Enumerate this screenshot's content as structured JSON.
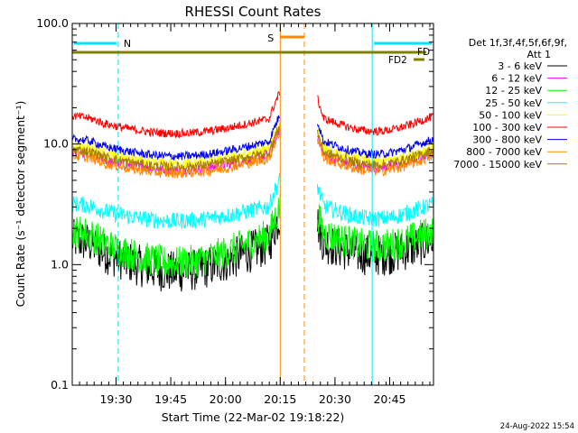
{
  "chart_data": {
    "type": "line",
    "title": "RHESSI Count Rates",
    "xlabel": "Start Time (22-Mar-02 19:18:22)",
    "ylabel": "Count Rate (s⁻¹ detector segment⁻¹)",
    "yscale": "log",
    "ylim": [
      0.1,
      100
    ],
    "xlim_minutes": [
      19.3,
      20.95
    ],
    "x_ticks": [
      {
        "t": 19.5,
        "label": "19:30"
      },
      {
        "t": 19.75,
        "label": "19:45"
      },
      {
        "t": 20.0,
        "label": "20:00"
      },
      {
        "t": 20.25,
        "label": "20:15"
      },
      {
        "t": 20.5,
        "label": "20:30"
      },
      {
        "t": 20.75,
        "label": "20:45"
      }
    ],
    "y_ticks": [
      {
        "v": 100,
        "label": "100.0"
      },
      {
        "v": 10,
        "label": "10.0"
      },
      {
        "v": 1,
        "label": "1.0"
      },
      {
        "v": 0.1,
        "label": "0.1"
      }
    ],
    "legend_header": [
      "Det 1f,3f,4f,5f,6f,9f,",
      "Att 1"
    ],
    "legend_placement": "right",
    "series": [
      {
        "name": "3 - 6 keV",
        "color": "#000000",
        "base_level": 1.6
      },
      {
        "name": "6 - 12 keV",
        "color": "#ff00ff",
        "base_level": 8.5
      },
      {
        "name": "12 - 25 keV",
        "color": "#00ff00",
        "base_level": 1.9
      },
      {
        "name": "25 - 50 keV",
        "color": "#00ffff",
        "base_level": 3.2
      },
      {
        "name": "50 - 100 keV",
        "color": "#ffff00",
        "base_level": 9.5
      },
      {
        "name": "100 - 300 keV",
        "color": "#ff0000",
        "base_level": 17
      },
      {
        "name": "300 - 800 keV",
        "color": "#0000ff",
        "base_level": 11
      },
      {
        "name": "800 - 7000 keV",
        "color": "#ff8800",
        "base_level": 8
      },
      {
        "name": "7000 - 15000 keV",
        "color": "#a88000",
        "base_level": 9
      }
    ],
    "data_intervals": [
      [
        19.3,
        20.25
      ],
      [
        20.42,
        20.95
      ]
    ],
    "night_markers": [
      {
        "label": "N",
        "start": 19.3,
        "end": 19.51,
        "color": "#00e5ff"
      },
      {
        "label": "",
        "start": 20.67,
        "end": 20.95,
        "color": "#00e5ff"
      }
    ],
    "saa_marker": {
      "label": "S",
      "start": 20.25,
      "end": 20.36,
      "color": "#ff8800"
    },
    "flag_bars": [
      {
        "label": "FD",
        "color": "#808000"
      },
      {
        "label": "FD2",
        "color": "#808000"
      }
    ],
    "timestamp": "24-Aug-2022 15:54"
  }
}
